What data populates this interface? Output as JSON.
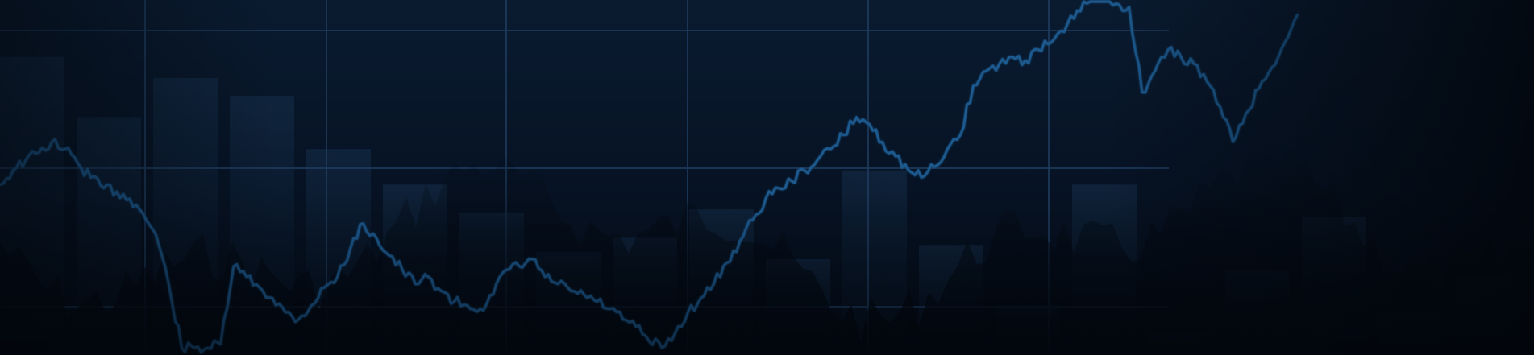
{
  "hero_banner": {
    "description_visible_text": "",
    "colors": {
      "background_top": "#0a1b30",
      "background_bottom": "#040b16",
      "grid_line": "#1e3a5c",
      "price_line": "#1f5a8f",
      "bar_fill": "#17324f",
      "shadow_area": "#030912"
    }
  },
  "chart_data": {
    "type": "line",
    "title": "",
    "xlabel": "",
    "ylabel": "",
    "grid": true,
    "legend": "none",
    "ylim": [
      0,
      100
    ],
    "series": [
      {
        "values": [
          48,
          52,
          55,
          57,
          60,
          58,
          54,
          50,
          47,
          46,
          44,
          40,
          34,
          20,
          2,
          2,
          2,
          3,
          25,
          22,
          19,
          16,
          12,
          10,
          14,
          19,
          22,
          30,
          37,
          33,
          28,
          24,
          20,
          22,
          18,
          15,
          14,
          13,
          17,
          24,
          25,
          27,
          22,
          20,
          18,
          17,
          15,
          13,
          10,
          8,
          4,
          2,
          6,
          12,
          16,
          20,
          26,
          32,
          38,
          44,
          47,
          49,
          52,
          55,
          58,
          62,
          67,
          65,
          60,
          56,
          52,
          50,
          53,
          58,
          62,
          76,
          80,
          82,
          84,
          83,
          86,
          88,
          91,
          97,
          100,
          100,
          99,
          98,
          74,
          80,
          86,
          84,
          82,
          77,
          70,
          60,
          68,
          75,
          81,
          88,
          96
        ]
      }
    ],
    "bars": [
      {
        "values": [
          84,
          67,
          78,
          73,
          58,
          48,
          40,
          29,
          33,
          41,
          27,
          52,
          31,
          14,
          48,
          6,
          24,
          39,
          11,
          22
        ]
      }
    ]
  }
}
